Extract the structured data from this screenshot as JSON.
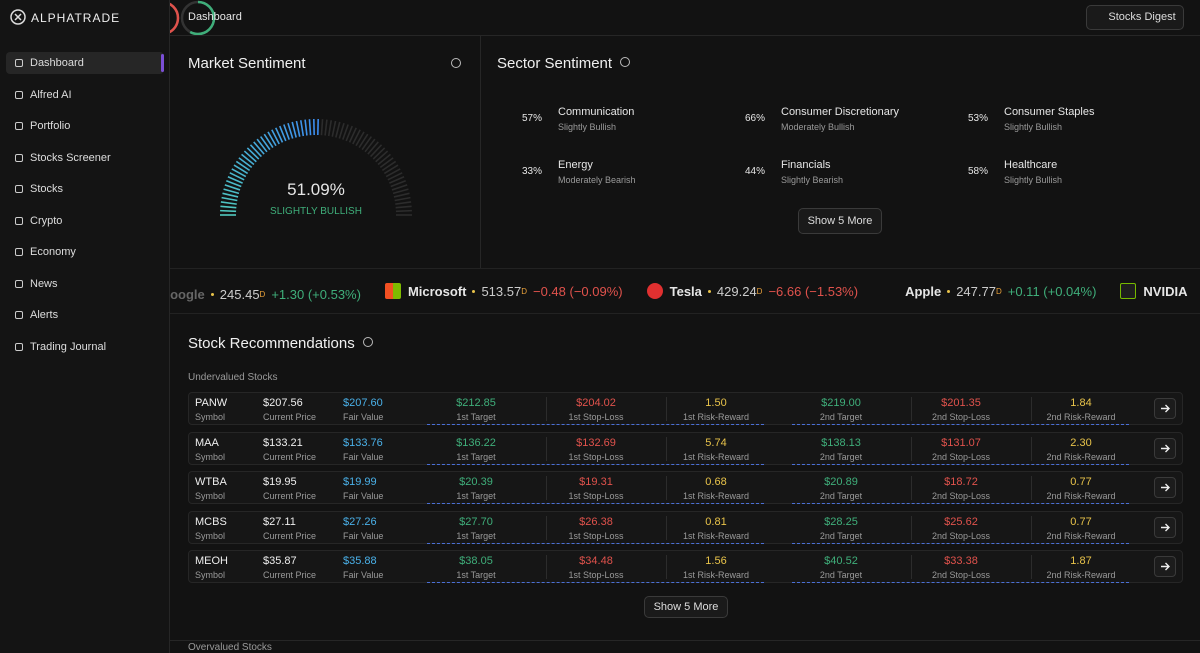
{
  "brand": "ALPHATRADE",
  "nav": [
    "Dashboard",
    "Alfred AI",
    "Portfolio",
    "Stocks Screener",
    "Stocks",
    "Crypto",
    "Economy",
    "News",
    "Alerts",
    "Trading Journal"
  ],
  "header": {
    "title": "Dashboard",
    "button": "Stocks Digest"
  },
  "market_sentiment": {
    "title": "Market Sentiment",
    "value": 51.09,
    "value_label": "51.09%",
    "label": "SLIGHTLY BULLISH"
  },
  "sector_sentiment": {
    "title": "Sector Sentiment",
    "button": "Show 5 More",
    "sectors": [
      {
        "name": "Communication",
        "percent": 57,
        "percent_label": "57%",
        "sentiment": "Slightly Bullish",
        "color": "#3fae7a"
      },
      {
        "name": "Consumer Discretionary",
        "percent": 66,
        "percent_label": "66%",
        "sentiment": "Moderately Bullish",
        "color": "#3fae7a"
      },
      {
        "name": "Consumer Staples",
        "percent": 53,
        "percent_label": "53%",
        "sentiment": "Slightly Bullish",
        "color": "#3fae7a"
      },
      {
        "name": "Energy",
        "percent": 33,
        "percent_label": "33%",
        "sentiment": "Moderately Bearish",
        "color": "#e0524c"
      },
      {
        "name": "Financials",
        "percent": 44,
        "percent_label": "44%",
        "sentiment": "Slightly Bearish",
        "color": "#e0524c"
      },
      {
        "name": "Healthcare",
        "percent": 58,
        "percent_label": "58%",
        "sentiment": "Slightly Bullish",
        "color": "#3fae7a"
      }
    ]
  },
  "ticker": [
    {
      "name": "Google",
      "price": "245.45",
      "flag": "D",
      "change": "+1.30 (+0.53%)",
      "color": "#3fae7a"
    },
    {
      "name": "Microsoft",
      "price": "513.57",
      "flag": "D",
      "change": "−0.48 (−0.09%)",
      "color": "#e0524c"
    },
    {
      "name": "Tesla",
      "price": "429.24",
      "flag": "D",
      "change": "−6.66 (−1.53%)",
      "color": "#e0524c"
    },
    {
      "name": "Apple",
      "price": "247.77",
      "flag": "D",
      "change": "+0.11 (+0.04%)",
      "color": "#3fae7a"
    },
    {
      "name": "NVIDIA"
    }
  ],
  "recommendations": {
    "title": "Stock Recommendations",
    "subtitle": "Undervalued Stocks",
    "button": "Show 5 More",
    "next_section": "Overvalued Stocks",
    "columns": [
      "Symbol",
      "Current Price",
      "Fair Value",
      "1st Target",
      "1st Stop-Loss",
      "1st Risk-Reward",
      "2nd Target",
      "2nd Stop-Loss",
      "2nd Risk-Reward"
    ],
    "rows": [
      [
        "PANW",
        "$207.56",
        "$207.60",
        "$212.85",
        "$204.02",
        "1.50",
        "$219.00",
        "$201.35",
        "1.84"
      ],
      [
        "MAA",
        "$133.21",
        "$133.76",
        "$136.22",
        "$132.69",
        "5.74",
        "$138.13",
        "$131.07",
        "2.30"
      ],
      [
        "WTBA",
        "$19.95",
        "$19.99",
        "$20.39",
        "$19.31",
        "0.68",
        "$20.89",
        "$18.72",
        "0.77"
      ],
      [
        "MCBS",
        "$27.11",
        "$27.26",
        "$27.70",
        "$26.38",
        "0.81",
        "$28.25",
        "$25.62",
        "0.77"
      ],
      [
        "MEOH",
        "$35.87",
        "$35.88",
        "$38.05",
        "$34.48",
        "1.56",
        "$40.52",
        "$33.38",
        "1.87"
      ]
    ]
  }
}
